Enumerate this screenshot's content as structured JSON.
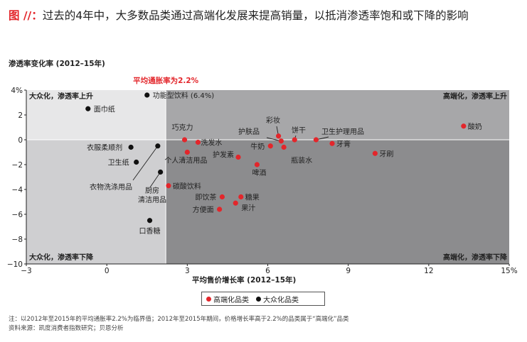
{
  "figure": {
    "prefix": "图 //：",
    "title": "过去的4年中，大多数品类通过高端化发展来提高销量，以抵消渗透率饱和或下降的影响"
  },
  "chart_data": {
    "type": "scatter",
    "xlabel": "平均售价增长率 (2012–15年)",
    "ylabel": "渗透率变化率 (2012–15年)",
    "xlim": [
      -3,
      15
    ],
    "ylim": [
      -10,
      4
    ],
    "x_ticks": [
      -3,
      0,
      3,
      6,
      9,
      12,
      15
    ],
    "x_tick_labels": [
      "−3",
      "0",
      "3",
      "6",
      "9",
      "12",
      "15%"
    ],
    "y_ticks": [
      4,
      2,
      0,
      -2,
      -4,
      -6,
      -8,
      -10
    ],
    "y_tick_labels": [
      "4%",
      "2",
      "0",
      "−2",
      "−4",
      "−6",
      "−8",
      "−10"
    ],
    "reference_x": 2.2,
    "reference_label": "平均通胀率为2.2%",
    "quadrants": {
      "top_left": "大众化，渗透率上升",
      "top_right": "高端化，渗透率上升",
      "bottom_left": "大众化，渗透率下降",
      "bottom_right": "高端化，渗透率下降"
    },
    "colors": {
      "premium": "#e3262b",
      "mass": "#111111",
      "left_upper_bg": "#e7e7e8",
      "left_lower_bg": "#cfcfd1",
      "right_upper_bg": "#a7a7a9",
      "right_lower_bg": "#8c8c8e"
    },
    "legend": {
      "premium": "高端化品类",
      "mass": "大众化品类"
    },
    "series": [
      {
        "name": "大众化品类",
        "key": "mass",
        "points": [
          {
            "label": "功能型饮料 (6.4%)",
            "x": 1.5,
            "y": 3.6
          },
          {
            "label": "面巾纸",
            "x": -0.7,
            "y": 2.5
          },
          {
            "label": "衣服柔顺剂",
            "x": 0.9,
            "y": -0.6
          },
          {
            "label": "卫生纸",
            "x": 1.1,
            "y": -1.8
          },
          {
            "label": "衣物洗涤用品",
            "x": 1.9,
            "y": -0.5
          },
          {
            "label": "厨房清洁用品",
            "x": 2.0,
            "y": -2.6
          },
          {
            "label": "口香糖",
            "x": 1.6,
            "y": -6.5
          }
        ]
      },
      {
        "name": "高端化品类",
        "key": "premium",
        "points": [
          {
            "label": "巧克力",
            "x": 2.9,
            "y": 0.0
          },
          {
            "label": "洗发水",
            "x": 3.4,
            "y": -0.2
          },
          {
            "label": "个人清洁用品",
            "x": 3.0,
            "y": -1.0
          },
          {
            "label": "碳酸饮料",
            "x": 2.3,
            "y": -3.7
          },
          {
            "label": "即饮茶",
            "x": 4.3,
            "y": -4.6
          },
          {
            "label": "方便面",
            "x": 4.2,
            "y": -5.6
          },
          {
            "label": "糖果",
            "x": 5.0,
            "y": -4.6
          },
          {
            "label": "果汁",
            "x": 4.8,
            "y": -5.1
          },
          {
            "label": "护发素",
            "x": 4.9,
            "y": -1.4
          },
          {
            "label": "啤酒",
            "x": 5.6,
            "y": -2.0
          },
          {
            "label": "牛奶",
            "x": 6.1,
            "y": -0.5
          },
          {
            "label": "护肤品",
            "x": 6.5,
            "y": -0.1
          },
          {
            "label": "彩妆",
            "x": 6.4,
            "y": 0.3
          },
          {
            "label": "瓶装水",
            "x": 6.6,
            "y": -0.6
          },
          {
            "label": "饼干",
            "x": 7.0,
            "y": 0.0
          },
          {
            "label": "卫生护理用品",
            "x": 7.8,
            "y": 0.0
          },
          {
            "label": "牙膏",
            "x": 8.4,
            "y": -0.3
          },
          {
            "label": "牙刷",
            "x": 10.0,
            "y": -1.1
          },
          {
            "label": "酸奶",
            "x": 13.3,
            "y": 1.1
          }
        ]
      }
    ]
  },
  "notes": {
    "line1": "注：以2012年至2015年的平均通胀率2.2%为临界值；2012年至2015年期间，价格增长率高于2.2%的品类属于“高端化”品类",
    "line2": "资料来源：凯度消费者指数研究；贝恩分析"
  }
}
